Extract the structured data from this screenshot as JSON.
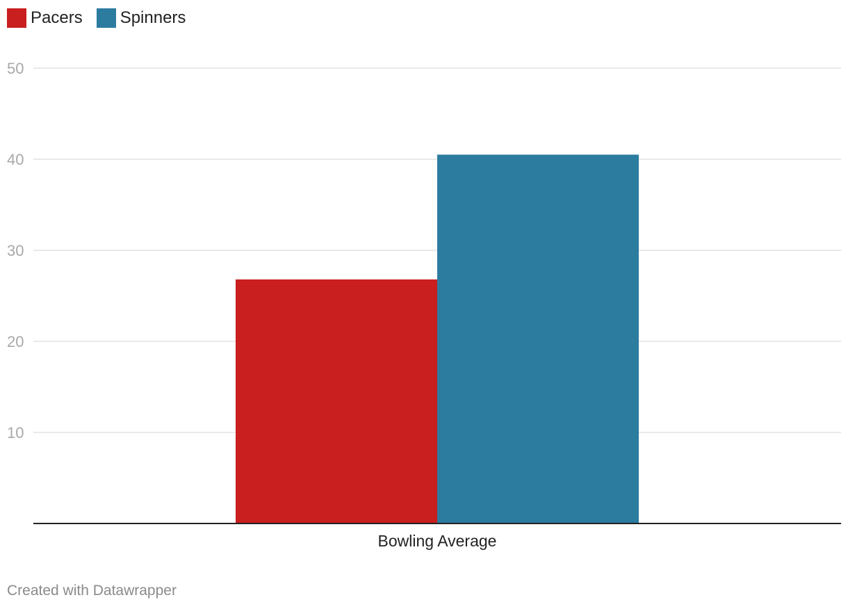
{
  "legend": {
    "items": [
      {
        "label": "Pacers",
        "color": "#c91f1f"
      },
      {
        "label": "Spinners",
        "color": "#2c7ca0"
      }
    ]
  },
  "chart_data": {
    "type": "bar",
    "categories": [
      "Bowling Average"
    ],
    "series": [
      {
        "name": "Pacers",
        "values": [
          26.8
        ],
        "color": "#c91f1f"
      },
      {
        "name": "Spinners",
        "values": [
          40.5
        ],
        "color": "#2c7ca0"
      }
    ],
    "ylim": [
      0,
      50
    ],
    "yticks": [
      10,
      20,
      30,
      40,
      50
    ],
    "grid": true,
    "legend_position": "top-left",
    "title": "",
    "xlabel": "",
    "ylabel": ""
  },
  "footer": {
    "credit": "Created with Datawrapper"
  }
}
